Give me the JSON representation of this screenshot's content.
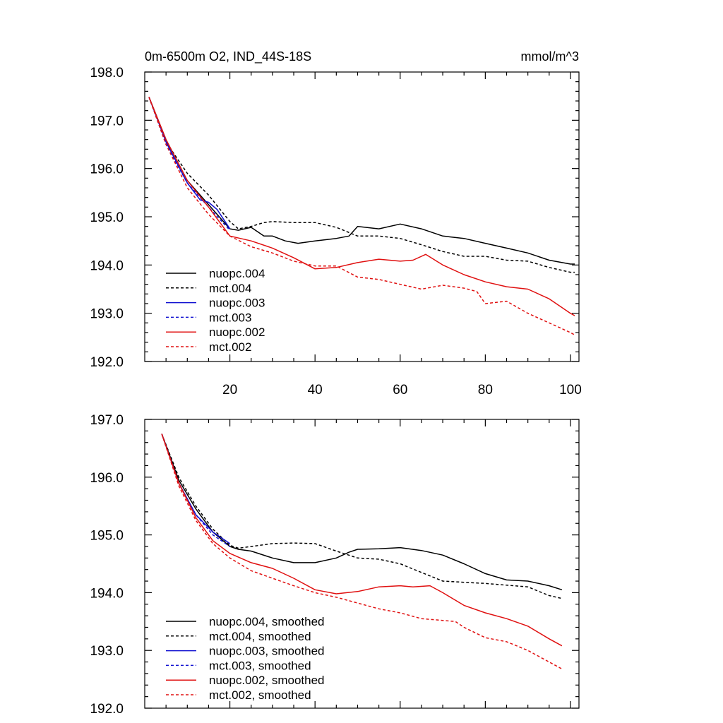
{
  "chart_data": [
    {
      "type": "line",
      "title": "0m-6500m O2, IND_44S-18S",
      "units": "mmol/m^3",
      "xlim": [
        0,
        102
      ],
      "ylim": [
        192.0,
        198.0
      ],
      "xticks": [
        20,
        40,
        60,
        80,
        100
      ],
      "xtick_labels": [
        "20",
        "40",
        "60",
        "80",
        "100"
      ],
      "yticks": [
        192.0,
        193.0,
        194.0,
        195.0,
        196.0,
        197.0,
        198.0
      ],
      "ytick_labels": [
        "192.0",
        "193.0",
        "194.0",
        "195.0",
        "196.0",
        "197.0",
        "198.0"
      ],
      "legend_position": "bottom-left",
      "series": [
        {
          "name": "nuopc.004",
          "color": "#000000",
          "dash": "solid",
          "x": [
            1,
            5,
            10,
            15,
            20,
            22,
            25,
            28,
            30,
            33,
            36,
            40,
            45,
            48,
            50,
            55,
            60,
            65,
            70,
            75,
            80,
            85,
            90,
            95,
            100,
            101
          ],
          "y": [
            197.48,
            196.6,
            195.75,
            195.25,
            194.75,
            194.72,
            194.78,
            194.6,
            194.6,
            194.5,
            194.45,
            194.5,
            194.55,
            194.6,
            194.8,
            194.75,
            194.85,
            194.75,
            194.6,
            194.55,
            194.45,
            194.35,
            194.25,
            194.1,
            194.02,
            194.02
          ]
        },
        {
          "name": "mct.004",
          "color": "#000000",
          "dash": "dashed",
          "x": [
            1,
            5,
            10,
            15,
            20,
            22,
            25,
            28,
            30,
            35,
            40,
            45,
            50,
            55,
            60,
            65,
            70,
            75,
            80,
            85,
            90,
            95,
            100,
            101
          ],
          "y": [
            197.48,
            196.55,
            195.9,
            195.45,
            194.9,
            194.75,
            194.8,
            194.88,
            194.9,
            194.88,
            194.88,
            194.78,
            194.6,
            194.6,
            194.55,
            194.42,
            194.28,
            194.18,
            194.18,
            194.1,
            194.08,
            193.95,
            193.85,
            193.85
          ]
        },
        {
          "name": "nuopc.003",
          "color": "#1010d0",
          "dash": "solid",
          "x": [
            1,
            5,
            10,
            13,
            15,
            17,
            20
          ],
          "y": [
            197.48,
            196.55,
            195.7,
            195.35,
            195.3,
            195.15,
            194.75
          ]
        },
        {
          "name": "mct.003",
          "color": "#1010d0",
          "dash": "dashed",
          "x": [
            1,
            5,
            10,
            15,
            20
          ],
          "y": [
            197.48,
            196.5,
            195.7,
            195.2,
            194.72
          ]
        },
        {
          "name": "nuopc.002",
          "color": "#e01010",
          "dash": "solid",
          "x": [
            1,
            5,
            10,
            15,
            20,
            25,
            30,
            35,
            40,
            45,
            50,
            55,
            60,
            63,
            66,
            70,
            75,
            80,
            85,
            90,
            95,
            100,
            101
          ],
          "y": [
            197.48,
            196.6,
            195.75,
            195.2,
            194.6,
            194.5,
            194.35,
            194.15,
            193.92,
            193.95,
            194.05,
            194.12,
            194.08,
            194.1,
            194.22,
            194.0,
            193.8,
            193.65,
            193.55,
            193.5,
            193.3,
            193.0,
            192.95
          ]
        },
        {
          "name": "mct.002",
          "color": "#e01010",
          "dash": "dashed",
          "x": [
            1,
            5,
            10,
            15,
            20,
            25,
            30,
            35,
            40,
            45,
            50,
            55,
            60,
            65,
            70,
            75,
            78,
            80,
            85,
            90,
            95,
            100,
            101
          ],
          "y": [
            197.48,
            196.5,
            195.6,
            195.05,
            194.6,
            194.38,
            194.25,
            194.08,
            193.98,
            193.98,
            193.75,
            193.7,
            193.6,
            193.5,
            193.58,
            193.52,
            193.45,
            193.2,
            193.25,
            193.0,
            192.8,
            192.6,
            192.55
          ]
        }
      ]
    },
    {
      "type": "line",
      "title": "",
      "xlim": [
        0,
        102
      ],
      "ylim": [
        192.0,
        197.0
      ],
      "xticks": [
        20,
        40,
        60,
        80,
        100
      ],
      "xtick_labels": [],
      "yticks": [
        192.0,
        193.0,
        194.0,
        195.0,
        196.0,
        197.0
      ],
      "ytick_labels": [
        "192.0",
        "193.0",
        "194.0",
        "195.0",
        "196.0",
        "197.0"
      ],
      "legend_position": "bottom-left",
      "series": [
        {
          "name": "nuopc.004, smoothed",
          "color": "#000000",
          "dash": "solid",
          "x": [
            4,
            8,
            12,
            16,
            20,
            22,
            25,
            30,
            35,
            40,
            45,
            48,
            50,
            55,
            60,
            65,
            70,
            75,
            80,
            85,
            90,
            95,
            98
          ],
          "y": [
            196.75,
            195.95,
            195.45,
            195.05,
            194.8,
            194.75,
            194.72,
            194.6,
            194.52,
            194.52,
            194.6,
            194.7,
            194.75,
            194.76,
            194.78,
            194.73,
            194.65,
            194.5,
            194.33,
            194.22,
            194.2,
            194.12,
            194.05
          ]
        },
        {
          "name": "mct.004, smoothed",
          "color": "#000000",
          "dash": "dashed",
          "x": [
            4,
            8,
            12,
            16,
            20,
            22,
            25,
            30,
            35,
            40,
            45,
            50,
            55,
            60,
            65,
            70,
            75,
            80,
            85,
            90,
            95,
            98
          ],
          "y": [
            196.75,
            196.0,
            195.5,
            195.1,
            194.82,
            194.77,
            194.8,
            194.85,
            194.86,
            194.85,
            194.72,
            194.6,
            194.58,
            194.5,
            194.35,
            194.2,
            194.18,
            194.16,
            194.13,
            194.1,
            193.95,
            193.9
          ]
        },
        {
          "name": "nuopc.003, smoothed",
          "color": "#1010d0",
          "dash": "solid",
          "x": [
            4,
            8,
            12,
            16,
            20
          ],
          "y": [
            196.75,
            195.9,
            195.35,
            195.05,
            194.85
          ]
        },
        {
          "name": "mct.003, smoothed",
          "color": "#1010d0",
          "dash": "dashed",
          "x": [
            4,
            8,
            12,
            16,
            20
          ],
          "y": [
            196.75,
            195.9,
            195.35,
            195.0,
            194.8
          ]
        },
        {
          "name": "nuopc.002, smoothed",
          "color": "#e01010",
          "dash": "solid",
          "x": [
            4,
            8,
            12,
            16,
            20,
            25,
            30,
            35,
            40,
            45,
            50,
            55,
            60,
            63,
            67,
            70,
            75,
            80,
            85,
            90,
            95,
            98
          ],
          "y": [
            196.75,
            195.9,
            195.3,
            194.9,
            194.68,
            194.52,
            194.42,
            194.25,
            194.05,
            193.98,
            194.02,
            194.1,
            194.12,
            194.1,
            194.12,
            194.0,
            193.78,
            193.65,
            193.55,
            193.42,
            193.2,
            193.08
          ]
        },
        {
          "name": "mct.002, smoothed",
          "color": "#e01010",
          "dash": "dashed",
          "x": [
            4,
            8,
            12,
            16,
            20,
            25,
            30,
            35,
            40,
            45,
            50,
            55,
            60,
            65,
            70,
            73,
            75,
            80,
            85,
            90,
            95,
            98
          ],
          "y": [
            196.75,
            195.85,
            195.25,
            194.85,
            194.6,
            194.38,
            194.25,
            194.12,
            194.0,
            193.92,
            193.82,
            193.72,
            193.65,
            193.55,
            193.52,
            193.5,
            193.4,
            193.22,
            193.15,
            193.0,
            192.8,
            192.68
          ]
        }
      ]
    }
  ]
}
